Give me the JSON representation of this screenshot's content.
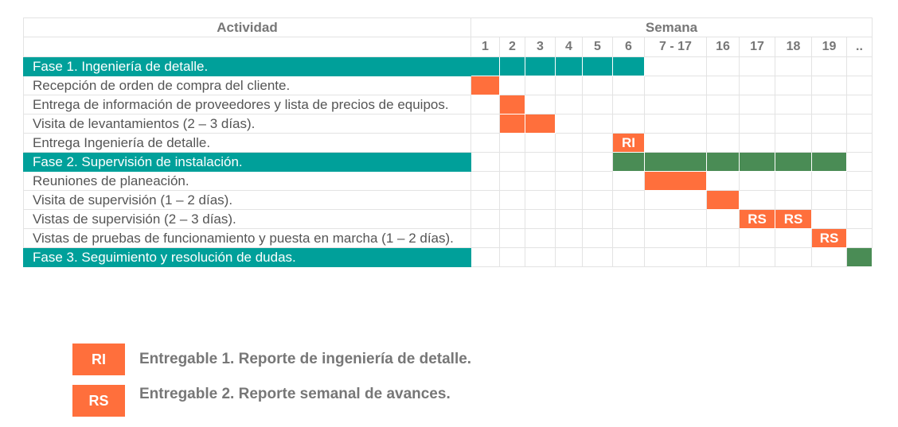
{
  "header": {
    "activity_label": "Actividad",
    "week_label": "Semana",
    "weeks": [
      "1",
      "2",
      "3",
      "4",
      "5",
      "6",
      "7 - 17",
      "16",
      "17",
      "18",
      "19",
      ".."
    ]
  },
  "colors": {
    "phase": "#00a09a",
    "task": "#ff6f3c",
    "supervision": "#4a8c55",
    "grid": "#e3e3e3",
    "text": "#555555"
  },
  "rows": [
    {
      "label": "Fase 1. Ingeniería de detalle.",
      "phase": true,
      "bars": [
        {
          "start": 0,
          "span": 6,
          "color": "teal"
        }
      ]
    },
    {
      "label": "Recepción de orden de compra del cliente.",
      "phase": false,
      "bars": [
        {
          "start": 0,
          "span": 1,
          "color": "orange"
        }
      ]
    },
    {
      "label": "Entrega de información de proveedores y lista de precios de equipos.",
      "phase": false,
      "bars": [
        {
          "start": 1,
          "span": 1,
          "color": "orange"
        }
      ]
    },
    {
      "label": "Visita de levantamientos (2 – 3 días).",
      "phase": false,
      "bars": [
        {
          "start": 1,
          "span": 2,
          "color": "orange"
        }
      ]
    },
    {
      "label": "Entrega Ingeniería de detalle.",
      "phase": false,
      "bars": [
        {
          "start": 5,
          "span": 1,
          "color": "orange",
          "mark": "RI"
        }
      ]
    },
    {
      "label": "Fase 2. Supervisión de instalación.",
      "phase": true,
      "bars": [
        {
          "start": 5,
          "span": 6,
          "color": "green"
        }
      ]
    },
    {
      "label": "Reuniones de planeación.",
      "phase": false,
      "bars": [
        {
          "start": 6,
          "span": 1,
          "color": "orange"
        }
      ]
    },
    {
      "label": "Visita de supervisión (1 – 2 días).",
      "phase": false,
      "bars": [
        {
          "start": 7,
          "span": 1,
          "color": "orange"
        }
      ]
    },
    {
      "label": "Vistas de supervisión (2 – 3 días).",
      "phase": false,
      "bars": [
        {
          "start": 8,
          "span": 1,
          "color": "orange",
          "mark": "RS"
        },
        {
          "start": 9,
          "span": 1,
          "color": "orange",
          "mark": "RS"
        }
      ]
    },
    {
      "label": "Vistas de pruebas de funcionamiento y puesta en marcha (1 – 2 días).",
      "phase": false,
      "bars": [
        {
          "start": 10,
          "span": 1,
          "color": "orange",
          "mark": "RS"
        }
      ]
    },
    {
      "label": "Fase 3. Seguimiento y resolución de dudas.",
      "phase": true,
      "bars": [
        {
          "start": 11,
          "span": 1,
          "color": "green"
        }
      ]
    }
  ],
  "legend": [
    {
      "code": "RI",
      "text": "Entregable 1. Reporte de ingeniería de detalle."
    },
    {
      "code": "RS",
      "text": "Entregable 2. Reporte semanal de avances."
    }
  ]
}
